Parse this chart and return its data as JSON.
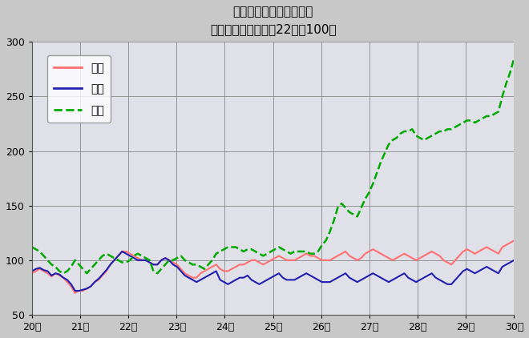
{
  "title_line1": "鳥取県鉱工業指数の推移",
  "title_line2": "（季節調整済、平成22年＝100）",
  "xlabel_ticks": [
    "20年",
    "21年",
    "22年",
    "23年",
    "24年",
    "25年",
    "26年",
    "27年",
    "28年",
    "29年",
    "30年"
  ],
  "legend_labels": [
    "生産",
    "出荷",
    "在庫"
  ],
  "legend_colors": [
    "#FF7070",
    "#2020B0",
    "#00AA00"
  ],
  "legend_styles": [
    "solid",
    "solid",
    "dashed"
  ],
  "ylim": [
    50,
    300
  ],
  "yticks": [
    50,
    100,
    150,
    200,
    250,
    300
  ],
  "background_color": "#C8C8C8",
  "plot_bg_color": "#E0E0E8",
  "production": [
    88,
    90,
    92,
    90,
    88,
    85,
    88,
    86,
    84,
    80,
    76,
    70,
    72,
    72,
    74,
    76,
    80,
    82,
    86,
    90,
    96,
    100,
    104,
    108,
    108,
    106,
    104,
    102,
    100,
    100,
    98,
    96,
    96,
    100,
    102,
    100,
    98,
    96,
    92,
    88,
    86,
    84,
    84,
    88,
    90,
    92,
    94,
    96,
    92,
    90,
    90,
    92,
    94,
    96,
    96,
    98,
    100,
    100,
    98,
    96,
    98,
    100,
    102,
    104,
    102,
    100,
    100,
    100,
    102,
    104,
    106,
    104,
    104,
    102,
    100,
    100,
    100,
    102,
    104,
    106,
    108,
    104,
    102,
    100,
    102,
    106,
    108,
    110,
    108,
    106,
    104,
    102,
    100,
    102,
    104,
    106,
    104,
    102,
    100,
    102,
    104,
    106,
    108,
    106,
    104,
    100,
    98,
    96,
    100,
    104,
    108,
    110,
    108,
    106,
    108,
    110,
    112,
    110,
    108,
    106,
    112,
    114,
    116,
    118
  ],
  "shipment": [
    90,
    92,
    93,
    91,
    90,
    86,
    88,
    87,
    84,
    82,
    78,
    72,
    72,
    73,
    74,
    76,
    80,
    83,
    87,
    91,
    96,
    100,
    104,
    108,
    106,
    104,
    102,
    100,
    100,
    100,
    98,
    96,
    96,
    100,
    102,
    100,
    96,
    94,
    90,
    86,
    84,
    82,
    80,
    82,
    84,
    86,
    88,
    90,
    82,
    80,
    78,
    80,
    82,
    84,
    84,
    86,
    82,
    80,
    78,
    80,
    82,
    84,
    86,
    88,
    84,
    82,
    82,
    82,
    84,
    86,
    88,
    86,
    84,
    82,
    80,
    80,
    80,
    82,
    84,
    86,
    88,
    84,
    82,
    80,
    82,
    84,
    86,
    88,
    86,
    84,
    82,
    80,
    82,
    84,
    86,
    88,
    84,
    82,
    80,
    82,
    84,
    86,
    88,
    84,
    82,
    80,
    78,
    78,
    82,
    86,
    90,
    92,
    90,
    88,
    90,
    92,
    94,
    92,
    90,
    88,
    94,
    96,
    98,
    100
  ],
  "inventory": [
    112,
    110,
    108,
    104,
    100,
    96,
    94,
    90,
    88,
    90,
    94,
    100,
    96,
    92,
    88,
    92,
    96,
    100,
    104,
    106,
    104,
    102,
    100,
    98,
    98,
    100,
    104,
    106,
    104,
    102,
    100,
    90,
    88,
    92,
    96,
    100,
    100,
    102,
    104,
    100,
    98,
    96,
    96,
    94,
    92,
    96,
    100,
    106,
    108,
    110,
    112,
    112,
    112,
    110,
    108,
    110,
    110,
    108,
    106,
    104,
    106,
    108,
    110,
    112,
    110,
    108,
    106,
    108,
    108,
    108,
    108,
    106,
    106,
    108,
    114,
    118,
    126,
    136,
    148,
    152,
    148,
    144,
    142,
    140,
    148,
    156,
    162,
    170,
    180,
    190,
    198,
    206,
    210,
    212,
    216,
    218,
    218,
    220,
    214,
    212,
    210,
    212,
    214,
    216,
    218,
    218,
    220,
    220,
    222,
    224,
    226,
    228,
    228,
    226,
    228,
    230,
    232,
    232,
    234,
    236,
    250,
    262,
    272,
    285
  ]
}
